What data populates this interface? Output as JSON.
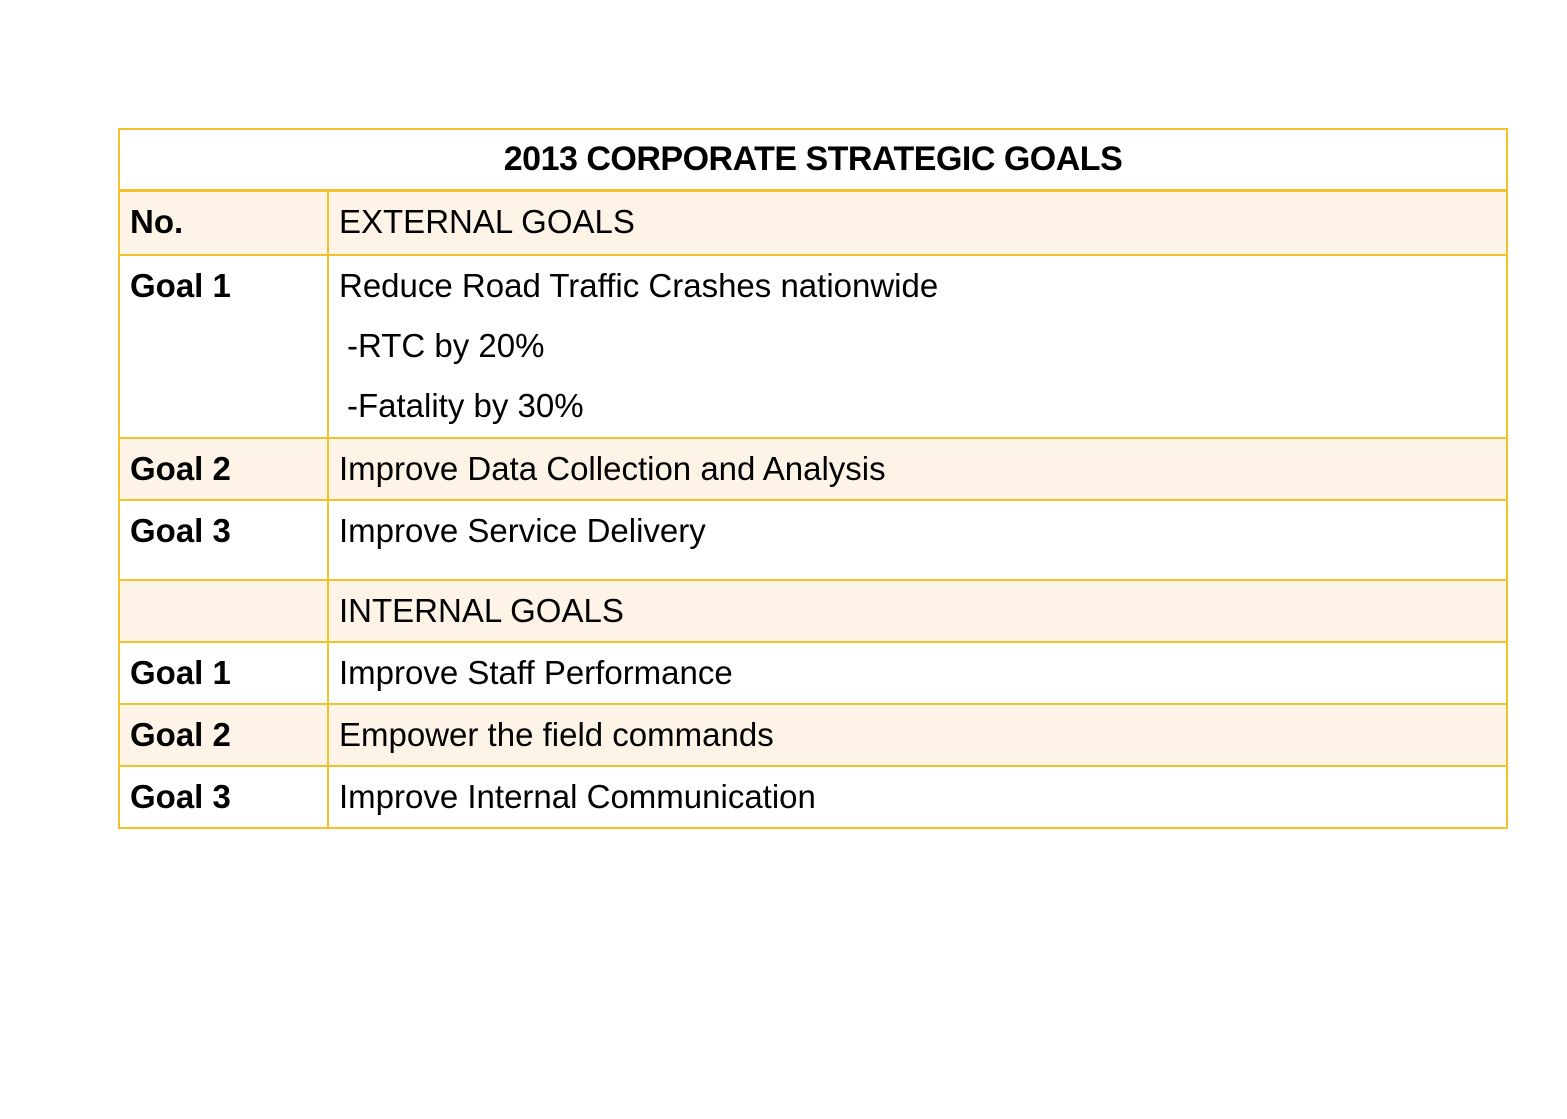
{
  "table": {
    "title": "2013 CORPORATE STRATEGIC GOALS",
    "header": {
      "no": "No.",
      "label": "EXTERNAL GOALS"
    },
    "external": [
      {
        "no": "Goal 1",
        "text": "Reduce Road Traffic Crashes nationwide",
        "sub": [
          "-RTC by 20%",
          "-Fatality by 30%"
        ]
      },
      {
        "no": "Goal 2",
        "text": "Improve Data Collection and Analysis"
      },
      {
        "no": "Goal 3",
        "text": "Improve Service Delivery"
      }
    ],
    "internal_header": {
      "no": "",
      "label": "INTERNAL GOALS"
    },
    "internal": [
      {
        "no": "Goal 1",
        "text": "Improve Staff Performance"
      },
      {
        "no": "Goal 2",
        "text": "Empower the field commands"
      },
      {
        "no": "Goal 3",
        "text": "Improve Internal Communication"
      }
    ]
  },
  "colors": {
    "border": "#f2c12e",
    "shaded_row": "#fef3e7"
  }
}
